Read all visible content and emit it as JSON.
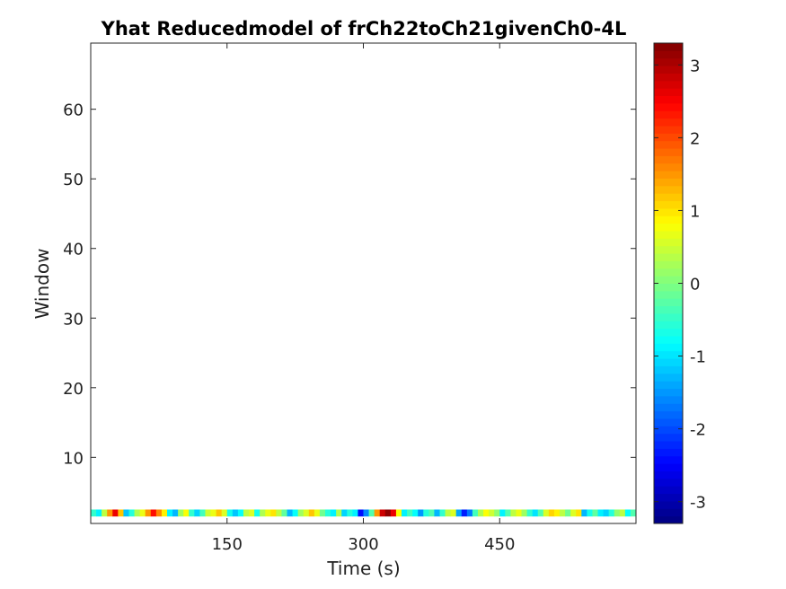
{
  "chart_data": {
    "type": "heatmap",
    "title": "Yhat Reducedmodel of frCh22toCh21givenCh0-4L",
    "xlabel": "Time (s)",
    "ylabel": "Window",
    "xlim": [
      0,
      600
    ],
    "ylim": [
      0.5,
      69.5
    ],
    "xticks": [
      150,
      300,
      450
    ],
    "yticks": [
      10,
      20,
      30,
      40,
      50,
      60
    ],
    "colorbar": {
      "colormap": "jet",
      "clim": [
        -3.3,
        3.3
      ],
      "ticks": [
        -3,
        -2,
        -1,
        0,
        1,
        2,
        3
      ],
      "location": "right"
    },
    "rows": [
      {
        "window": 2,
        "x_start": 0,
        "x_step": 6,
        "values": [
          -0.5,
          -0.9,
          0.4,
          1.5,
          2.6,
          1.2,
          -1.2,
          -0.6,
          0.3,
          0.7,
          1.5,
          2.4,
          1.6,
          0.9,
          -0.9,
          -1.3,
          0.2,
          0.8,
          -0.5,
          -1.1,
          -0.4,
          0.5,
          0.7,
          1.2,
          0.6,
          -0.7,
          -1.2,
          -0.8,
          0.4,
          0.6,
          -0.7,
          0.3,
          0.7,
          1.0,
          0.4,
          -0.2,
          -1.3,
          -0.8,
          0.2,
          0.6,
          1.2,
          0.7,
          -0.1,
          -0.6,
          -0.9,
          0.3,
          -1.1,
          -0.6,
          -0.9,
          -2.4,
          -1.6,
          -0.3,
          1.5,
          2.8,
          3.2,
          2.6,
          0.8,
          -0.9,
          -0.4,
          -0.8,
          -1.5,
          -0.6,
          -0.3,
          -1.3,
          -0.5,
          0.4,
          0.6,
          -1.4,
          -2.3,
          -1.7,
          -0.4,
          0.3,
          0.8,
          0.5,
          0.1,
          -0.9,
          -0.3,
          0.4,
          0.7,
          0.2,
          -0.5,
          -1.0,
          -0.3,
          0.6,
          1.1,
          0.9,
          0.4,
          -0.1,
          0.6,
          1.0,
          -1.3,
          -0.7,
          -0.2,
          -0.9,
          -1.1,
          -0.6,
          0.1,
          0.4,
          -0.8,
          -0.3
        ],
        "sequence_range": [
          -3.3,
          3.3
        ]
      }
    ]
  }
}
